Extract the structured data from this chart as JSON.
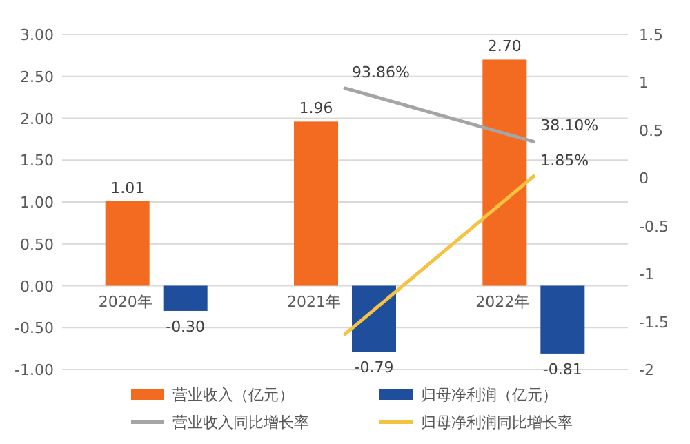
{
  "chart_data": {
    "type": "bar",
    "categories": [
      "2020年",
      "2021年",
      "2022年"
    ],
    "ylim": [
      -1,
      3
    ],
    "yticks": [
      {
        "value": 3,
        "label": "3.00"
      },
      {
        "value": 2.5,
        "label": "2.50"
      },
      {
        "value": 2,
        "label": "2.00"
      },
      {
        "value": 1.5,
        "label": "1.50"
      },
      {
        "value": 1,
        "label": "1.00"
      },
      {
        "value": 0.5,
        "label": "0.50"
      },
      {
        "value": 0,
        "label": "0.00"
      },
      {
        "value": -0.5,
        "label": "-0.50"
      },
      {
        "value": -1,
        "label": "-1.00"
      }
    ],
    "y2lim": [
      -2,
      1.5
    ],
    "y2ticks": [
      1.5,
      1,
      0.5,
      0,
      -0.5,
      -1,
      -1.5,
      -2
    ],
    "grid": "y",
    "legend": "bottom",
    "series": [
      {
        "name": "营业收入（亿元）",
        "color": "#f26b21",
        "values": [
          1.01,
          1.96,
          2.7
        ],
        "value_labels": [
          "1.01",
          "1.96",
          "2.70"
        ]
      },
      {
        "name": "归母净利润（亿元）",
        "color": "#1f4e9c",
        "values": [
          -0.3,
          -0.79,
          -0.81
        ],
        "value_labels": [
          "-0.30",
          "-0.79",
          "-0.81"
        ]
      },
      {
        "name": "营业收入同比增长率",
        "type": "line",
        "axis": "y2",
        "color": "#a5a5a5",
        "values": [
          null,
          0.9386,
          0.381
        ],
        "value_labels": [
          null,
          "93.86%",
          "38.10%"
        ]
      },
      {
        "name": "归母净利润同比增长率",
        "type": "line",
        "axis": "y2",
        "color": "#f5c242",
        "values": [
          null,
          -1.63,
          0.0185
        ],
        "value_labels": [
          null,
          null,
          "1.85%"
        ]
      }
    ]
  }
}
